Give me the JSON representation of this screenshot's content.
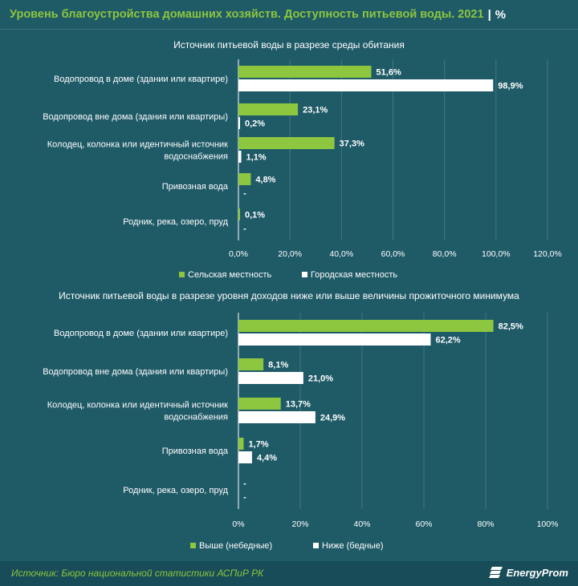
{
  "header": {
    "title": "Уровень благоустройства домашних хозяйств. Доступность питьевой воды. 2021",
    "separator": "|",
    "unit": "%"
  },
  "colors": {
    "green": "#8dc63f",
    "white": "#ffffff",
    "background": "#1f5a67"
  },
  "chart_data": [
    {
      "type": "bar",
      "orientation": "horizontal",
      "title": "Источник питьевой воды в разрезе среды обитания",
      "categories": [
        "Водопровод в доме (здании или квартире)",
        "Водопровод вне дома (здания или квартиры)",
        "Колодец, колонка или идентичный источник водоснабжения",
        "Привозная вода",
        "Родник, река, озеро, пруд"
      ],
      "series": [
        {
          "name": "Сельская местность",
          "color": "#8dc63f",
          "values": [
            51.6,
            23.1,
            37.3,
            4.8,
            0.1
          ],
          "labels": [
            "51,6%",
            "23,1%",
            "37,3%",
            "4,8%",
            "0,1%"
          ]
        },
        {
          "name": "Городская местность",
          "color": "#ffffff",
          "values": [
            98.9,
            0.2,
            1.1,
            0,
            0
          ],
          "labels": [
            "98,9%",
            "0,2%",
            "1,1%",
            "-",
            "-"
          ]
        }
      ],
      "xlim": [
        0,
        120
      ],
      "xticks": [
        "0,0%",
        "20,0%",
        "40,0%",
        "60,0%",
        "80,0%",
        "100,0%",
        "120,0%"
      ],
      "grid": true,
      "legend": "bottom"
    },
    {
      "type": "bar",
      "orientation": "horizontal",
      "title": "Источник питьевой воды в разрезе уровня доходов ниже или выше величины прожиточного минимума",
      "categories": [
        "Водопровод в доме (здании или квартире)",
        "Водопровод вне дома (здания или квартиры)",
        "Колодец, колонка или идентичный источник водоснабжения",
        "Привозная вода",
        "Родник, река, озеро, пруд"
      ],
      "series": [
        {
          "name": "Выше (небедные)",
          "color": "#8dc63f",
          "values": [
            82.5,
            8.1,
            13.7,
            1.7,
            0
          ],
          "labels": [
            "82,5%",
            "8,1%",
            "13,7%",
            "1,7%",
            "-"
          ]
        },
        {
          "name": "Ниже (бедные)",
          "color": "#ffffff",
          "values": [
            62.2,
            21.0,
            24.9,
            4.4,
            0
          ],
          "labels": [
            "62,2%",
            "21,0%",
            "24,9%",
            "4,4%",
            "-"
          ]
        }
      ],
      "xlim": [
        0,
        100
      ],
      "xticks": [
        "0%",
        "20%",
        "40%",
        "60%",
        "80%",
        "100%"
      ],
      "grid": true,
      "legend": "bottom"
    }
  ],
  "footer": {
    "source": "Источник: Бюро национальной статистики АСПиР РК",
    "logo": "EnergyProm",
    "logo_icon": "energyprom-logo-icon"
  }
}
